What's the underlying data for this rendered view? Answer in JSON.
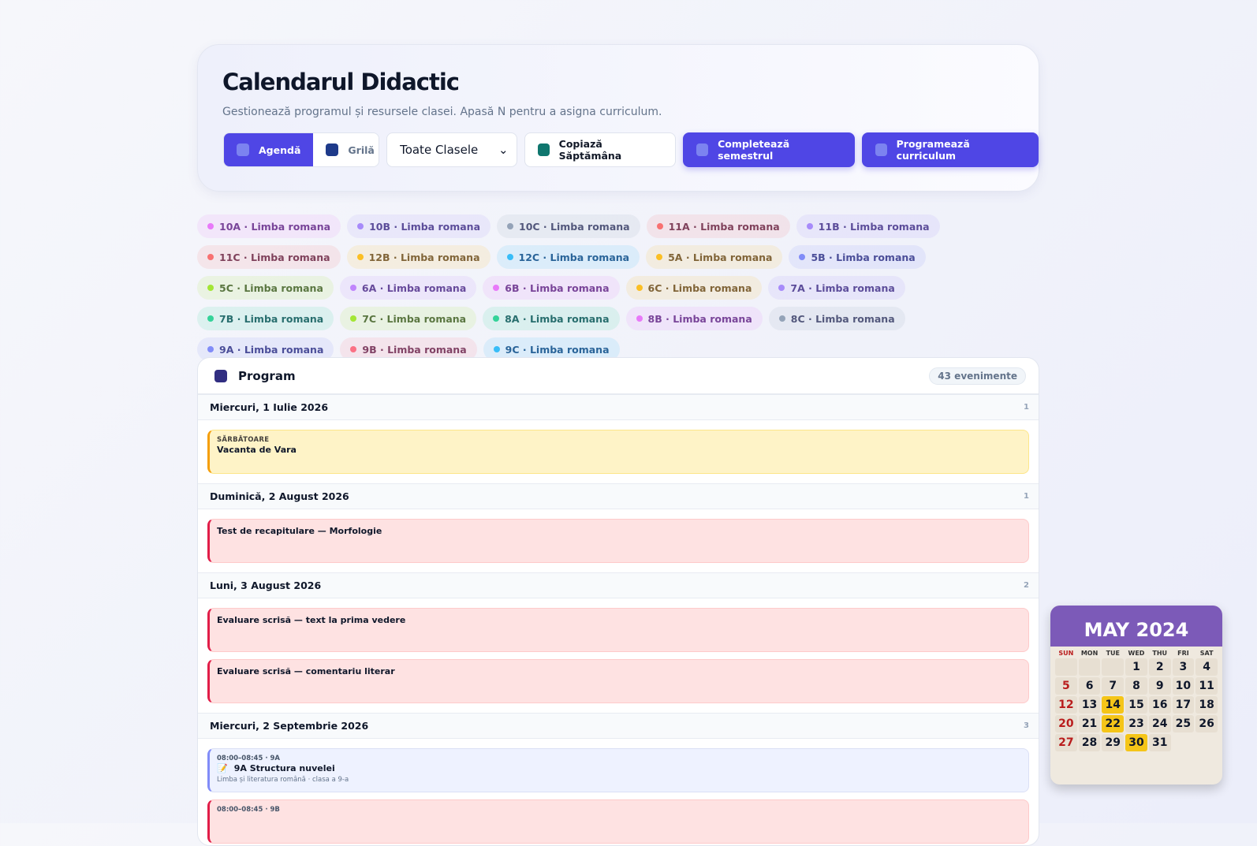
{
  "header": {
    "title": "Calendarul Didactic",
    "subtitle": "Gestionează programul și resursele clasei. Apasă N pentru a asigna curriculum."
  },
  "toolbar": {
    "views": [
      {
        "label": "Agendă",
        "active": true
      },
      {
        "label": "Grilă",
        "active": false
      }
    ],
    "select": "Toate Clasele",
    "buttons": [
      {
        "label": "Copiază Săptămâna",
        "primary": false
      },
      {
        "label": "Completează semestrul",
        "primary": true
      },
      {
        "label": "Programează curriculum",
        "primary": true
      }
    ]
  },
  "chips": [
    {
      "label": "10A · Limba romana",
      "color": "#e879f9"
    },
    {
      "label": "10B · Limba romana",
      "color": "#a78bfa"
    },
    {
      "label": "10C · Limba romana",
      "color": "#94a3b8"
    },
    {
      "label": "11A · Limba romana",
      "color": "#f87171"
    },
    {
      "label": "11B · Limba romana",
      "color": "#a78bfa"
    },
    {
      "label": "11C · Limba romana",
      "color": "#f87171"
    },
    {
      "label": "12B · Limba romana",
      "color": "#fbbf24"
    },
    {
      "label": "12C · Limba romana",
      "color": "#38bdf8"
    },
    {
      "label": "5A · Limba romana",
      "color": "#fbbf24"
    },
    {
      "label": "5B · Limba romana",
      "color": "#818cf8"
    },
    {
      "label": "5C · Limba romana",
      "color": "#a3e635"
    },
    {
      "label": "6A · Limba romana",
      "color": "#c084fc"
    },
    {
      "label": "6B · Limba romana",
      "color": "#e879f9"
    },
    {
      "label": "6C · Limba romana",
      "color": "#fbbf24"
    },
    {
      "label": "7A · Limba romana",
      "color": "#a78bfa"
    },
    {
      "label": "7B · Limba romana",
      "color": "#34d399"
    },
    {
      "label": "7C · Limba romana",
      "color": "#a3e635"
    },
    {
      "label": "8A · Limba romana",
      "color": "#34d399"
    },
    {
      "label": "8B · Limba romana",
      "color": "#e879f9"
    },
    {
      "label": "8C · Limba romana",
      "color": "#94a3b8"
    },
    {
      "label": "9A · Limba romana",
      "color": "#818cf8"
    },
    {
      "label": "9B · Limba romana",
      "color": "#fb7185"
    },
    {
      "label": "9C · Limba romana",
      "color": "#38bdf8"
    }
  ],
  "program": {
    "title": "Program",
    "count": "43 evenimente",
    "days": [
      {
        "date": "Miercuri, 1 Iulie 2026",
        "count": "1",
        "events": [
          {
            "kind": "holiday",
            "tag": "SĂRBĂTOARE",
            "title": "Vacanta de Vara"
          }
        ]
      },
      {
        "date": "Duminică, 2 August 2026",
        "count": "1",
        "events": [
          {
            "kind": "test",
            "title": "Test de recapitulare — Morfologie"
          }
        ]
      },
      {
        "date": "Luni, 3 August 2026",
        "count": "2",
        "events": [
          {
            "kind": "test",
            "title": "Evaluare scrisă — text la prima vedere"
          },
          {
            "kind": "test",
            "title": "Evaluare scrisă — comentariu literar"
          }
        ]
      },
      {
        "date": "Miercuri, 2 Septembrie 2026",
        "count": "3",
        "events": [
          {
            "kind": "lesson",
            "time": "08:00–08:45 · 9A",
            "icon": "📝",
            "title": "9A Structura nuvelei",
            "subtitle": "Limba și literatura română · clasa a 9-a"
          },
          {
            "kind": "test",
            "time": "08:00–08:45 · 9B"
          }
        ]
      }
    ]
  },
  "sticker": {
    "title": "MAY 2024",
    "weekdays": [
      "SUN",
      "MON",
      "TUE",
      "WED",
      "THU",
      "FRI",
      "SAT"
    ],
    "days": [
      null,
      null,
      null,
      "1",
      "2",
      "3",
      "4",
      "5",
      "6",
      "7",
      "8",
      "9",
      "10",
      "11",
      "12",
      "13",
      "14",
      "15",
      "16",
      "17",
      "18",
      "20",
      "21",
      "22",
      "23",
      "24",
      "25",
      "26",
      "27",
      "28",
      "29",
      "30",
      "31"
    ],
    "highlight": [
      "14",
      "22",
      "30"
    ]
  }
}
